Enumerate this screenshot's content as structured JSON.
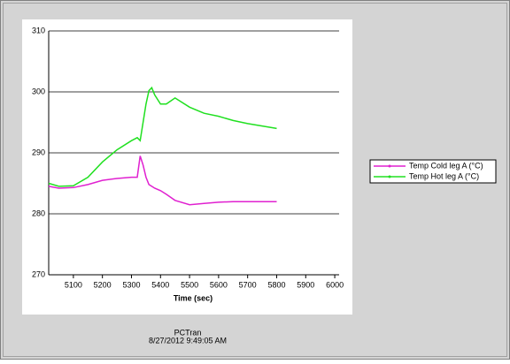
{
  "chart_data": {
    "type": "line",
    "x_label": "Time (sec)",
    "footer": [
      "PCTran",
      "8/27/2012 9:49:05 AM"
    ],
    "x": [
      5015,
      5050,
      5100,
      5150,
      5200,
      5250,
      5300,
      5320,
      5330,
      5340,
      5350,
      5360,
      5370,
      5380,
      5400,
      5420,
      5450,
      5500,
      5550,
      5600,
      5650,
      5700,
      5750,
      5800
    ],
    "series": [
      {
        "name": "Temp Cold leg A (°C)",
        "color": "#e020d0",
        "values": [
          284.5,
          284.2,
          284.3,
          284.8,
          285.5,
          285.8,
          286,
          286,
          289.5,
          288,
          286,
          284.8,
          284.5,
          284.2,
          283.8,
          283.2,
          282.2,
          281.5,
          281.7,
          281.9,
          282,
          282,
          282,
          282
        ]
      },
      {
        "name": "Temp Hot leg A (°C)",
        "color": "#20e020",
        "values": [
          285,
          284.5,
          284.6,
          286,
          288.5,
          290.5,
          292,
          292.5,
          292,
          295,
          298,
          300.2,
          300.7,
          299.5,
          298,
          298,
          299,
          297.5,
          296.5,
          296,
          295.3,
          294.8,
          294.4,
          294
        ]
      }
    ],
    "xlim": [
      5015,
      6015
    ],
    "ylim": [
      270,
      310
    ],
    "xticks": [
      5100,
      5200,
      5300,
      5400,
      5500,
      5600,
      5700,
      5800,
      5900,
      6000
    ],
    "yticks": [
      270,
      280,
      290,
      300,
      310
    ],
    "grid": true,
    "legend": "right"
  }
}
